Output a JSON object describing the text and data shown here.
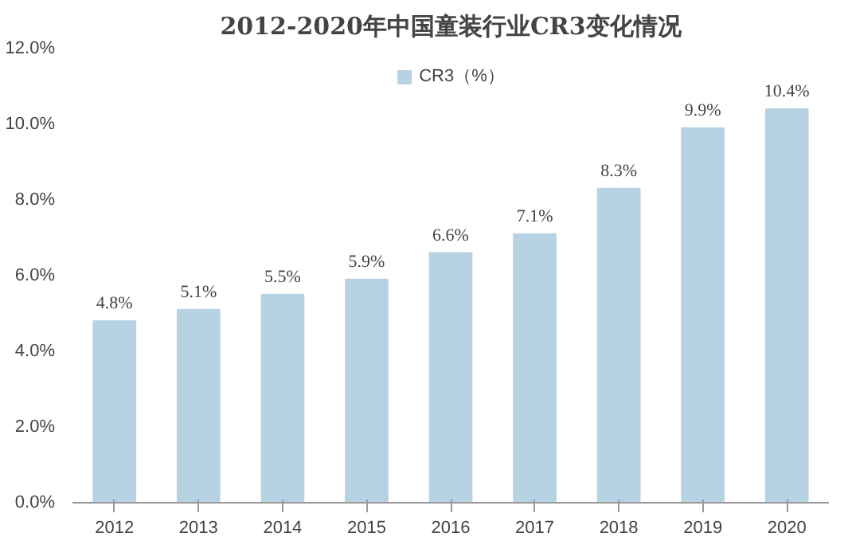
{
  "chart_data": {
    "type": "bar",
    "title": "2012-2020年中国童装行业CR3变化情况",
    "categories": [
      "2012",
      "2013",
      "2014",
      "2015",
      "2016",
      "2017",
      "2018",
      "2019",
      "2020"
    ],
    "series": [
      {
        "name": "CR3（%）",
        "color": "#b7d3e3",
        "values": [
          4.8,
          5.1,
          5.5,
          5.9,
          6.6,
          7.1,
          8.3,
          9.9,
          10.4
        ]
      }
    ],
    "value_labels": [
      "4.8%",
      "5.1%",
      "5.5%",
      "5.9%",
      "6.6%",
      "7.1%",
      "8.3%",
      "9.9%",
      "10.4%"
    ],
    "ylim": [
      0,
      12
    ],
    "yticks": [
      {
        "value": 0,
        "label": "0.0%"
      },
      {
        "value": 2,
        "label": "2.0%"
      },
      {
        "value": 4,
        "label": "4.0%"
      },
      {
        "value": 6,
        "label": "6.0%"
      },
      {
        "value": 8,
        "label": "8.0%"
      },
      {
        "value": 10,
        "label": "10.0%"
      },
      {
        "value": 12,
        "label": "12.0%"
      }
    ],
    "grid": false,
    "legend": "top"
  }
}
